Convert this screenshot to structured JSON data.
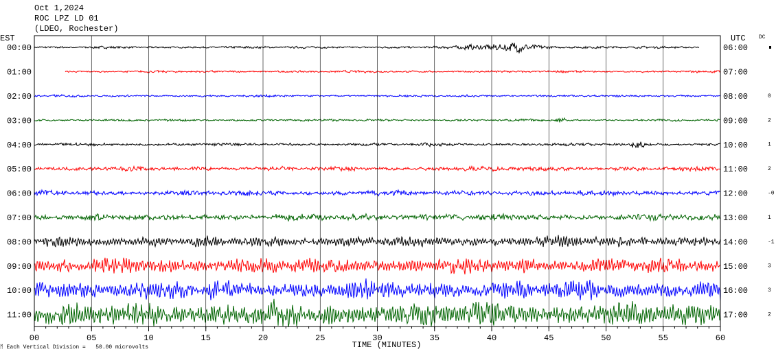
{
  "header": {
    "date": "Oct 1,2024",
    "station": "ROC LPZ LD 01",
    "network": "(LDEO, Rochester)"
  },
  "left_zone": "EST",
  "right_zone": "UTC",
  "dc_label": "DC",
  "x_axis_title": "TIME (MINUTES)",
  "scale_note": "Each Vertical Division =   50.00 microvolts",
  "xticks": [
    {
      "value": 0,
      "label": "00"
    },
    {
      "value": 5,
      "label": "05"
    },
    10,
    15,
    20,
    25,
    30,
    35,
    40,
    45,
    50,
    55,
    60
  ],
  "xlim": [
    0,
    60
  ],
  "rows": [
    {
      "est": "00:00",
      "utc": "06:00",
      "color": "#000000"
    },
    {
      "est": "01:00",
      "utc": "07:00",
      "color": "#ff0000"
    },
    {
      "est": "02:00",
      "utc": "08:00",
      "color": "#0000ff",
      "dc": "0"
    },
    {
      "est": "03:00",
      "utc": "09:00",
      "color": "#006400",
      "dc": "2"
    },
    {
      "est": "04:00",
      "utc": "10:00",
      "color": "#000000",
      "dc": "1"
    },
    {
      "est": "05:00",
      "utc": "11:00",
      "color": "#ff0000",
      "dc": "2"
    },
    {
      "est": "06:00",
      "utc": "12:00",
      "color": "#0000ff",
      "dc": "-0"
    },
    {
      "est": "07:00",
      "utc": "13:00",
      "color": "#006400",
      "dc": "1"
    },
    {
      "est": "08:00",
      "utc": "14:00",
      "color": "#000000",
      "dc": "-1"
    },
    {
      "est": "09:00",
      "utc": "15:00",
      "color": "#ff0000",
      "dc": "3"
    },
    {
      "est": "10:00",
      "utc": "16:00",
      "color": "#0000ff",
      "dc": "3"
    },
    {
      "est": "11:00",
      "utc": "17:00",
      "color": "#006400",
      "dc": "2"
    }
  ]
}
